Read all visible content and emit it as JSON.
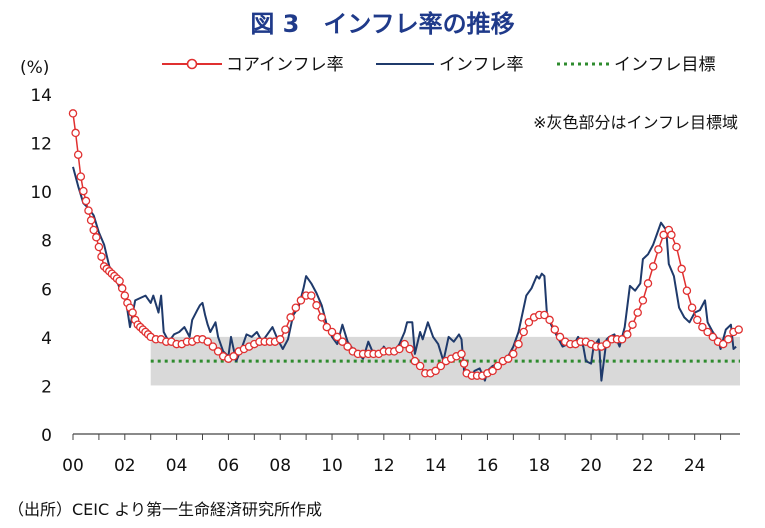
{
  "chart_data": {
    "type": "line",
    "title": "図 3　インフレ率の推移",
    "ylabel": "(%)",
    "ylim": [
      0,
      14
    ],
    "xlim": [
      2000,
      2025.75
    ],
    "yticks": [
      "0",
      "2",
      "4",
      "6",
      "8",
      "10",
      "12",
      "14"
    ],
    "xticks": [
      "00",
      "02",
      "04",
      "06",
      "08",
      "10",
      "12",
      "14",
      "16",
      "18",
      "20",
      "22",
      "24"
    ],
    "annotation": "※灰色部分はインフレ目標域",
    "target_band": {
      "start": 2003.0,
      "end": 2025.75,
      "low": 2,
      "high": 4
    },
    "target_line": {
      "start": 2003.0,
      "end": 2025.75,
      "value": 3
    },
    "legend": [
      "コアインフレ率",
      "インフレ率",
      "インフレ目標"
    ],
    "series": [
      {
        "name": "インフレ率",
        "color": "#1f3a6b",
        "points": [
          [
            2000.0,
            11.0
          ],
          [
            2000.2,
            10.2
          ],
          [
            2000.4,
            9.5
          ],
          [
            2000.6,
            9.3
          ],
          [
            2000.8,
            9.0
          ],
          [
            2001.0,
            8.3
          ],
          [
            2001.2,
            7.8
          ],
          [
            2001.4,
            6.9
          ],
          [
            2001.6,
            6.6
          ],
          [
            2001.8,
            6.0
          ],
          [
            2002.0,
            5.8
          ],
          [
            2002.2,
            4.4
          ],
          [
            2002.4,
            5.5
          ],
          [
            2002.6,
            5.6
          ],
          [
            2002.8,
            5.7
          ],
          [
            2003.0,
            5.4
          ],
          [
            2003.1,
            5.7
          ],
          [
            2003.3,
            5.0
          ],
          [
            2003.4,
            5.7
          ],
          [
            2003.5,
            4.2
          ],
          [
            2003.7,
            3.8
          ],
          [
            2003.9,
            4.1
          ],
          [
            2004.1,
            4.2
          ],
          [
            2004.3,
            4.4
          ],
          [
            2004.5,
            4.0
          ],
          [
            2004.6,
            4.7
          ],
          [
            2004.8,
            5.1
          ],
          [
            2004.9,
            5.3
          ],
          [
            2005.0,
            5.4
          ],
          [
            2005.1,
            4.9
          ],
          [
            2005.2,
            4.5
          ],
          [
            2005.3,
            4.2
          ],
          [
            2005.5,
            4.6
          ],
          [
            2005.6,
            4.0
          ],
          [
            2005.8,
            3.4
          ],
          [
            2006.0,
            3.2
          ],
          [
            2006.1,
            4.0
          ],
          [
            2006.3,
            3.0
          ],
          [
            2006.5,
            3.5
          ],
          [
            2006.7,
            4.1
          ],
          [
            2006.9,
            4.0
          ],
          [
            2007.1,
            4.2
          ],
          [
            2007.3,
            3.8
          ],
          [
            2007.5,
            4.1
          ],
          [
            2007.7,
            4.4
          ],
          [
            2007.9,
            3.9
          ],
          [
            2008.1,
            3.5
          ],
          [
            2008.3,
            3.9
          ],
          [
            2008.5,
            4.9
          ],
          [
            2008.7,
            5.2
          ],
          [
            2008.9,
            6.0
          ],
          [
            2009.0,
            6.5
          ],
          [
            2009.2,
            6.2
          ],
          [
            2009.4,
            5.8
          ],
          [
            2009.6,
            5.3
          ],
          [
            2009.8,
            4.5
          ],
          [
            2010.0,
            4.0
          ],
          [
            2010.2,
            3.7
          ],
          [
            2010.4,
            4.5
          ],
          [
            2010.6,
            3.8
          ],
          [
            2010.8,
            3.5
          ],
          [
            2011.0,
            3.3
          ],
          [
            2011.2,
            3.1
          ],
          [
            2011.4,
            3.8
          ],
          [
            2011.6,
            3.3
          ],
          [
            2011.8,
            3.2
          ],
          [
            2012.0,
            3.6
          ],
          [
            2012.2,
            3.3
          ],
          [
            2012.4,
            3.4
          ],
          [
            2012.6,
            3.7
          ],
          [
            2012.8,
            4.2
          ],
          [
            2012.9,
            4.6
          ],
          [
            2013.1,
            4.6
          ],
          [
            2013.2,
            3.3
          ],
          [
            2013.4,
            4.2
          ],
          [
            2013.5,
            3.9
          ],
          [
            2013.7,
            4.6
          ],
          [
            2013.9,
            4.0
          ],
          [
            2014.1,
            3.7
          ],
          [
            2014.3,
            3.0
          ],
          [
            2014.5,
            4.0
          ],
          [
            2014.7,
            3.8
          ],
          [
            2014.9,
            4.1
          ],
          [
            2015.0,
            3.9
          ],
          [
            2015.1,
            2.6
          ],
          [
            2015.2,
            2.4
          ],
          [
            2015.4,
            2.4
          ],
          [
            2015.5,
            2.6
          ],
          [
            2015.7,
            2.7
          ],
          [
            2015.9,
            2.2
          ],
          [
            2016.0,
            2.6
          ],
          [
            2016.2,
            2.8
          ],
          [
            2016.4,
            2.9
          ],
          [
            2016.6,
            3.0
          ],
          [
            2016.8,
            3.2
          ],
          [
            2017.0,
            3.6
          ],
          [
            2017.2,
            4.2
          ],
          [
            2017.4,
            5.2
          ],
          [
            2017.5,
            5.7
          ],
          [
            2017.7,
            6.0
          ],
          [
            2017.9,
            6.5
          ],
          [
            2018.0,
            6.4
          ],
          [
            2018.1,
            6.6
          ],
          [
            2018.2,
            6.5
          ],
          [
            2018.3,
            4.9
          ],
          [
            2018.5,
            4.4
          ],
          [
            2018.7,
            4.0
          ],
          [
            2018.9,
            3.6
          ],
          [
            2019.1,
            3.7
          ],
          [
            2019.3,
            3.6
          ],
          [
            2019.5,
            4.0
          ],
          [
            2019.7,
            3.6
          ],
          [
            2019.8,
            3.0
          ],
          [
            2020.0,
            2.9
          ],
          [
            2020.1,
            3.6
          ],
          [
            2020.3,
            3.9
          ],
          [
            2020.4,
            2.2
          ],
          [
            2020.6,
            3.9
          ],
          [
            2020.7,
            4.0
          ],
          [
            2020.9,
            4.1
          ],
          [
            2021.1,
            3.6
          ],
          [
            2021.3,
            4.4
          ],
          [
            2021.5,
            6.1
          ],
          [
            2021.7,
            5.9
          ],
          [
            2021.9,
            6.2
          ],
          [
            2022.0,
            7.2
          ],
          [
            2022.2,
            7.4
          ],
          [
            2022.4,
            7.8
          ],
          [
            2022.6,
            8.4
          ],
          [
            2022.7,
            8.7
          ],
          [
            2022.9,
            8.4
          ],
          [
            2023.0,
            7.0
          ],
          [
            2023.2,
            6.5
          ],
          [
            2023.4,
            5.2
          ],
          [
            2023.6,
            4.8
          ],
          [
            2023.8,
            4.6
          ],
          [
            2024.0,
            5.0
          ],
          [
            2024.2,
            5.1
          ],
          [
            2024.4,
            5.5
          ],
          [
            2024.5,
            4.6
          ],
          [
            2024.7,
            4.2
          ],
          [
            2024.9,
            3.9
          ],
          [
            2025.0,
            3.5
          ],
          [
            2025.2,
            4.3
          ],
          [
            2025.4,
            4.5
          ],
          [
            2025.5,
            3.5
          ],
          [
            2025.6,
            3.6
          ]
        ]
      },
      {
        "name": "コアインフレ率",
        "color": "#e03030",
        "points": [
          [
            2000.0,
            13.2
          ],
          [
            2000.1,
            12.4
          ],
          [
            2000.2,
            11.5
          ],
          [
            2000.3,
            10.6
          ],
          [
            2000.4,
            10.0
          ],
          [
            2000.5,
            9.6
          ],
          [
            2000.6,
            9.2
          ],
          [
            2000.7,
            8.8
          ],
          [
            2000.8,
            8.4
          ],
          [
            2000.9,
            8.1
          ],
          [
            2001.0,
            7.7
          ],
          [
            2001.1,
            7.3
          ],
          [
            2001.2,
            6.9
          ],
          [
            2001.3,
            6.8
          ],
          [
            2001.4,
            6.7
          ],
          [
            2001.5,
            6.6
          ],
          [
            2001.6,
            6.5
          ],
          [
            2001.7,
            6.4
          ],
          [
            2001.8,
            6.3
          ],
          [
            2001.9,
            6.0
          ],
          [
            2002.0,
            5.7
          ],
          [
            2002.1,
            5.4
          ],
          [
            2002.2,
            5.2
          ],
          [
            2002.3,
            5.0
          ],
          [
            2002.4,
            4.7
          ],
          [
            2002.5,
            4.5
          ],
          [
            2002.6,
            4.4
          ],
          [
            2002.7,
            4.3
          ],
          [
            2002.8,
            4.2
          ],
          [
            2002.9,
            4.1
          ],
          [
            2003.0,
            4.0
          ],
          [
            2003.2,
            3.9
          ],
          [
            2003.4,
            3.9
          ],
          [
            2003.6,
            3.8
          ],
          [
            2003.8,
            3.8
          ],
          [
            2004.0,
            3.7
          ],
          [
            2004.2,
            3.7
          ],
          [
            2004.4,
            3.8
          ],
          [
            2004.6,
            3.8
          ],
          [
            2004.8,
            3.9
          ],
          [
            2005.0,
            3.9
          ],
          [
            2005.2,
            3.8
          ],
          [
            2005.4,
            3.6
          ],
          [
            2005.6,
            3.4
          ],
          [
            2005.8,
            3.2
          ],
          [
            2006.0,
            3.1
          ],
          [
            2006.2,
            3.2
          ],
          [
            2006.4,
            3.4
          ],
          [
            2006.6,
            3.5
          ],
          [
            2006.8,
            3.6
          ],
          [
            2007.0,
            3.7
          ],
          [
            2007.2,
            3.8
          ],
          [
            2007.4,
            3.8
          ],
          [
            2007.6,
            3.8
          ],
          [
            2007.8,
            3.8
          ],
          [
            2008.0,
            3.9
          ],
          [
            2008.2,
            4.3
          ],
          [
            2008.4,
            4.8
          ],
          [
            2008.6,
            5.2
          ],
          [
            2008.8,
            5.5
          ],
          [
            2009.0,
            5.7
          ],
          [
            2009.2,
            5.7
          ],
          [
            2009.4,
            5.3
          ],
          [
            2009.6,
            4.8
          ],
          [
            2009.8,
            4.4
          ],
          [
            2010.0,
            4.2
          ],
          [
            2010.2,
            4.0
          ],
          [
            2010.4,
            3.8
          ],
          [
            2010.6,
            3.6
          ],
          [
            2010.8,
            3.4
          ],
          [
            2011.0,
            3.3
          ],
          [
            2011.2,
            3.3
          ],
          [
            2011.4,
            3.3
          ],
          [
            2011.6,
            3.3
          ],
          [
            2011.8,
            3.3
          ],
          [
            2012.0,
            3.4
          ],
          [
            2012.2,
            3.4
          ],
          [
            2012.4,
            3.4
          ],
          [
            2012.6,
            3.5
          ],
          [
            2012.8,
            3.7
          ],
          [
            2013.0,
            3.5
          ],
          [
            2013.2,
            3.0
          ],
          [
            2013.4,
            2.8
          ],
          [
            2013.6,
            2.5
          ],
          [
            2013.8,
            2.5
          ],
          [
            2014.0,
            2.6
          ],
          [
            2014.2,
            2.8
          ],
          [
            2014.4,
            3.0
          ],
          [
            2014.6,
            3.1
          ],
          [
            2014.8,
            3.2
          ],
          [
            2015.0,
            3.3
          ],
          [
            2015.1,
            2.9
          ],
          [
            2015.2,
            2.5
          ],
          [
            2015.4,
            2.4
          ],
          [
            2015.6,
            2.4
          ],
          [
            2015.8,
            2.4
          ],
          [
            2016.0,
            2.5
          ],
          [
            2016.2,
            2.6
          ],
          [
            2016.4,
            2.8
          ],
          [
            2016.6,
            3.0
          ],
          [
            2016.8,
            3.1
          ],
          [
            2017.0,
            3.3
          ],
          [
            2017.2,
            3.7
          ],
          [
            2017.4,
            4.2
          ],
          [
            2017.6,
            4.6
          ],
          [
            2017.8,
            4.8
          ],
          [
            2018.0,
            4.9
          ],
          [
            2018.2,
            4.9
          ],
          [
            2018.4,
            4.7
          ],
          [
            2018.6,
            4.3
          ],
          [
            2018.8,
            4.0
          ],
          [
            2019.0,
            3.8
          ],
          [
            2019.2,
            3.7
          ],
          [
            2019.4,
            3.7
          ],
          [
            2019.6,
            3.8
          ],
          [
            2019.8,
            3.8
          ],
          [
            2020.0,
            3.7
          ],
          [
            2020.2,
            3.6
          ],
          [
            2020.4,
            3.6
          ],
          [
            2020.6,
            3.7
          ],
          [
            2020.8,
            3.9
          ],
          [
            2021.0,
            3.9
          ],
          [
            2021.2,
            3.9
          ],
          [
            2021.4,
            4.1
          ],
          [
            2021.6,
            4.5
          ],
          [
            2021.8,
            5.0
          ],
          [
            2022.0,
            5.5
          ],
          [
            2022.2,
            6.2
          ],
          [
            2022.4,
            6.9
          ],
          [
            2022.6,
            7.6
          ],
          [
            2022.8,
            8.2
          ],
          [
            2023.0,
            8.4
          ],
          [
            2023.1,
            8.2
          ],
          [
            2023.3,
            7.7
          ],
          [
            2023.5,
            6.8
          ],
          [
            2023.7,
            5.9
          ],
          [
            2023.9,
            5.2
          ],
          [
            2024.1,
            4.7
          ],
          [
            2024.3,
            4.4
          ],
          [
            2024.5,
            4.2
          ],
          [
            2024.7,
            4.0
          ],
          [
            2024.9,
            3.8
          ],
          [
            2025.1,
            3.7
          ],
          [
            2025.3,
            3.9
          ],
          [
            2025.5,
            4.2
          ],
          [
            2025.7,
            4.3
          ]
        ]
      }
    ]
  },
  "source": "（出所）CEIC より第一生命経済研究所作成"
}
